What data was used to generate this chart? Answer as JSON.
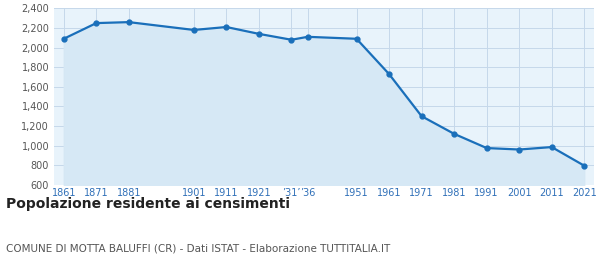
{
  "years": [
    1861,
    1871,
    1881,
    1901,
    1911,
    1921,
    1931,
    1936,
    1951,
    1961,
    1971,
    1981,
    1991,
    2001,
    2011,
    2021
  ],
  "x_labels": [
    "1861",
    "1871",
    "1881",
    "1901",
    "1911",
    "1921",
    "’31’",
    "’36",
    "1951",
    "1961",
    "1971",
    "1981",
    "1991",
    "2001",
    "2011",
    "2021"
  ],
  "values": [
    2090,
    2250,
    2260,
    2180,
    2210,
    2140,
    2080,
    2110,
    2090,
    1730,
    1300,
    1120,
    975,
    960,
    985,
    795
  ],
  "line_color": "#1a6fba",
  "fill_color": "#d6e8f5",
  "marker": "o",
  "marker_size": 3.5,
  "line_width": 1.6,
  "ylim": [
    600,
    2400
  ],
  "yticks": [
    600,
    800,
    1000,
    1200,
    1400,
    1600,
    1800,
    2000,
    2200,
    2400
  ],
  "grid_color": "#c5d8ea",
  "bg_color": "#ffffff",
  "plot_bg_color": "#e8f3fb",
  "title": "Popolazione residente ai censimenti",
  "subtitle": "COMUNE DI MOTTA BALUFFI (CR) - Dati ISTAT - Elaborazione TUTTITALIA.IT",
  "title_fontsize": 10,
  "subtitle_fontsize": 7.5,
  "tick_fontsize": 7,
  "x_tick_color": "#3070b8",
  "y_tick_color": "#555555"
}
